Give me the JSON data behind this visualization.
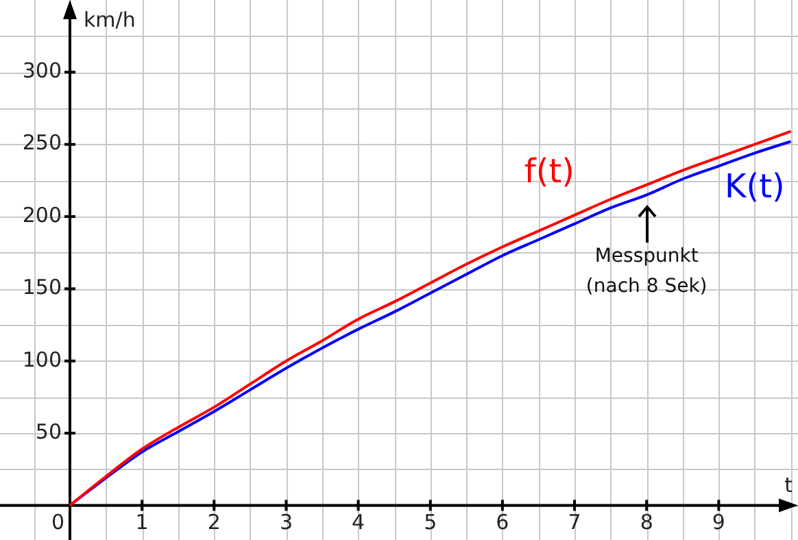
{
  "chart_data": {
    "type": "line",
    "xlabel": "t",
    "ylabel": "km/h",
    "x": [
      0,
      0.5,
      1,
      1.5,
      2,
      2.5,
      3,
      3.5,
      4,
      4.5,
      5,
      5.5,
      6,
      6.5,
      7,
      7.5,
      8,
      8.5,
      9,
      9.5,
      10
    ],
    "series": [
      {
        "name": "f(t)",
        "color": "#ff0000",
        "values": [
          0,
          20,
          39,
          54,
          68,
          84,
          100,
          114,
          129,
          141,
          154,
          167,
          179,
          190,
          201,
          212,
          222,
          232,
          241,
          250,
          259
        ]
      },
      {
        "name": "K(t)",
        "color": "#0000ff",
        "values": [
          0,
          19,
          37,
          51,
          65,
          80,
          95,
          109,
          122,
          134,
          147,
          160,
          173,
          184,
          195,
          206,
          215,
          226,
          235,
          244,
          252
        ]
      }
    ],
    "xlim": [
      -0.97,
      10.1
    ],
    "ylim": [
      -24,
      350
    ],
    "xticks": [
      {
        "value": -0.5,
        "label": null
      },
      0,
      {
        "value": 0.5,
        "label": null
      },
      1,
      {
        "value": 1.5,
        "label": null
      },
      2,
      {
        "value": 2.5,
        "label": null
      },
      3,
      {
        "value": 3.5,
        "label": null
      },
      4,
      {
        "value": 4.5,
        "label": null
      },
      5,
      {
        "value": 5.5,
        "label": null
      },
      6,
      {
        "value": 6.5,
        "label": null
      },
      7,
      {
        "value": 7.5,
        "label": null
      },
      8,
      {
        "value": 8.5,
        "label": null
      },
      9,
      {
        "value": 9.5,
        "label": null
      },
      {
        "value": 10,
        "label": null
      }
    ],
    "yticks": [
      {
        "value": 0,
        "label": null
      },
      {
        "value": 25,
        "label": null
      },
      50,
      {
        "value": 75,
        "label": null
      },
      100,
      {
        "value": 125,
        "label": null
      },
      150,
      {
        "value": 175,
        "label": null
      },
      200,
      {
        "value": 225,
        "label": null
      },
      250,
      {
        "value": 275,
        "label": null
      },
      300,
      {
        "value": 325,
        "label": null
      }
    ],
    "grid": true,
    "legend": false,
    "marker": "none",
    "line_style": "solid",
    "annotations": [
      {
        "text": "Messpunkt\n(nach 8 Sek)",
        "x": 8,
        "y": 215
      }
    ]
  }
}
